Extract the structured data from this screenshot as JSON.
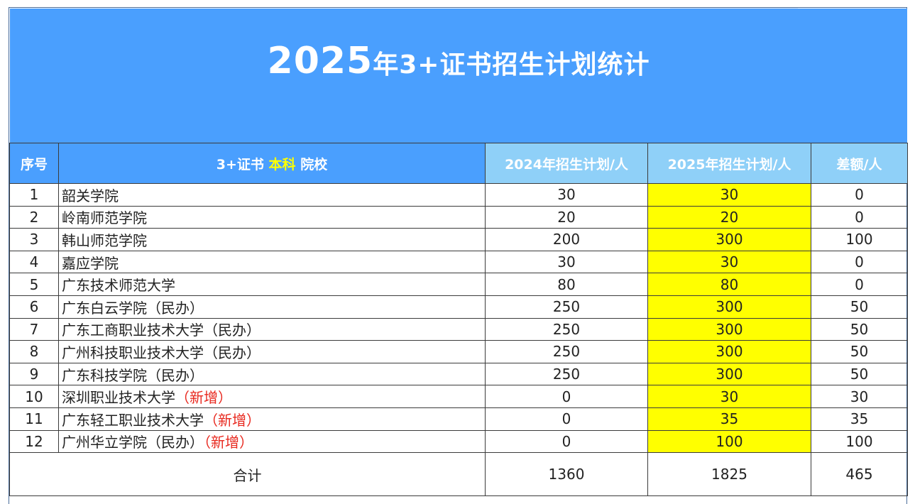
{
  "title": {
    "year": "2025",
    "rest": "年3+证书招生计划统计"
  },
  "headers": {
    "seq": "序号",
    "school_prefix": "3+证书",
    "school_highlight": "本科",
    "school_suffix": "院校",
    "plan2024": "2024年招生计划/人",
    "plan2025": "2025年招生计划/人",
    "diff": "差额/人"
  },
  "rows": [
    {
      "seq": "1",
      "name": "韶关学院",
      "tag": "",
      "p2024": "30",
      "p2025": "30",
      "diff": "0"
    },
    {
      "seq": "2",
      "name": "岭南师范学院",
      "tag": "",
      "p2024": "20",
      "p2025": "20",
      "diff": "0"
    },
    {
      "seq": "3",
      "name": "韩山师范学院",
      "tag": "",
      "p2024": "200",
      "p2025": "300",
      "diff": "100"
    },
    {
      "seq": "4",
      "name": "嘉应学院",
      "tag": "",
      "p2024": "30",
      "p2025": "30",
      "diff": "0"
    },
    {
      "seq": "5",
      "name": "广东技术师范大学",
      "tag": "",
      "p2024": "80",
      "p2025": "80",
      "diff": "0"
    },
    {
      "seq": "6",
      "name": "广东白云学院（民办）",
      "tag": "",
      "p2024": "250",
      "p2025": "300",
      "diff": "50"
    },
    {
      "seq": "7",
      "name": "广东工商职业技术大学（民办）",
      "tag": "",
      "p2024": "250",
      "p2025": "300",
      "diff": "50"
    },
    {
      "seq": "8",
      "name": "广州科技职业技术大学（民办）",
      "tag": "",
      "p2024": "250",
      "p2025": "300",
      "diff": "50"
    },
    {
      "seq": "9",
      "name": "广东科技学院（民办）",
      "tag": "",
      "p2024": "250",
      "p2025": "300",
      "diff": "50"
    },
    {
      "seq": "10",
      "name": "深圳职业技术大学",
      "tag": "（新增）",
      "p2024": "0",
      "p2025": "30",
      "diff": "30"
    },
    {
      "seq": "11",
      "name": "广东轻工职业技术大学",
      "tag": "（新增）",
      "p2024": "0",
      "p2025": "35",
      "diff": "35"
    },
    {
      "seq": "12",
      "name": "广州华立学院（民办）",
      "tag": "（新增）",
      "p2024": "0",
      "p2025": "100",
      "diff": "100"
    }
  ],
  "total": {
    "label": "合计",
    "p2024": "1360",
    "p2025": "1825",
    "diff": "465"
  },
  "colors": {
    "banner": "#4a9ffe",
    "header_light": "#8fd0f8",
    "highlight": "#ffff00",
    "new_tag": "#e8281e"
  }
}
